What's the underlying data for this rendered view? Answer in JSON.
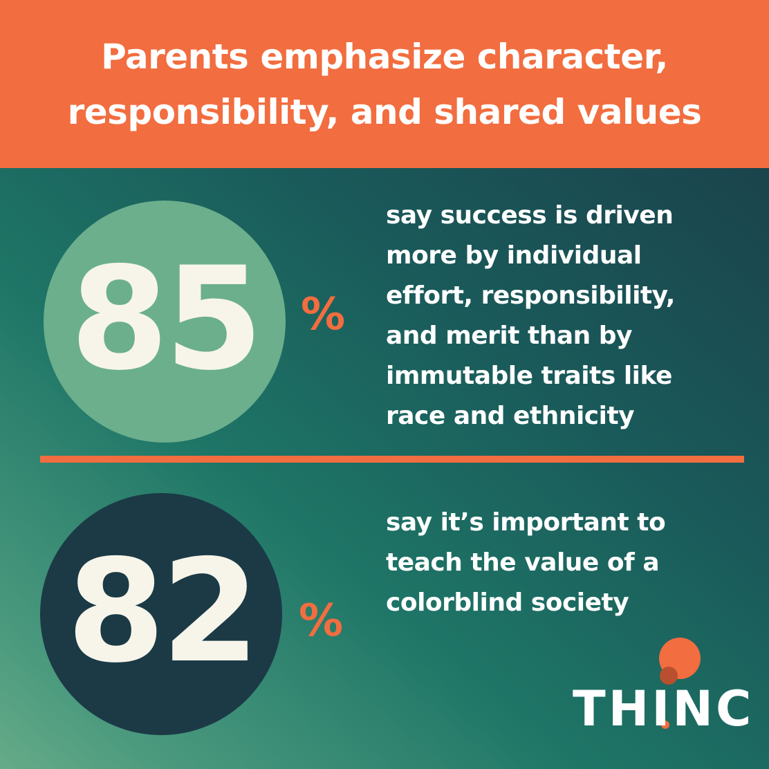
{
  "header": {
    "title_lines": [
      "Parents emphasize character,",
      "responsibility, and shared values"
    ]
  },
  "stats": [
    {
      "value": 85,
      "unit": "%",
      "text": "say success is driven more by individual effort, responsibility, and merit than by immutable traits like race and ethnicity"
    },
    {
      "value": 82,
      "unit": "%",
      "text": "say it’s important to teach the value of a colorblind society"
    }
  ],
  "logo": {
    "text": "THINC"
  }
}
